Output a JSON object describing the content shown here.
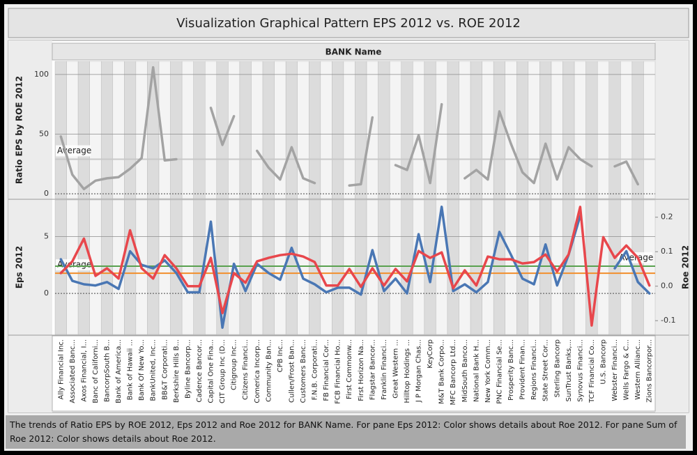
{
  "dashboard": {
    "title": "Visualization Graphical Pattern EPS 2012 vs. ROE 2012",
    "column_header": "BANK Name",
    "caption": "The trends of Ratio EPS by ROE 2012, Eps 2012 and Roe 2012 for BANK Name.  For pane Eps 2012:  Color shows details about Roe 2012.  For pane Sum of Roe 2012:  Color shows details about Roe 2012."
  },
  "chart_data": [
    {
      "type": "line",
      "ylim": [
        -4,
        111
      ],
      "yticks": [
        0,
        50,
        100
      ],
      "grid": true,
      "reference_lines": [
        {
          "label": "Average",
          "value": 29,
          "color": "#c8c8c8"
        }
      ],
      "series": [
        {
          "name": "Ratio EPS by ROE 2012",
          "color": "#a3a3a3",
          "values": [
            48,
            16,
            4,
            11,
            13,
            14,
            21,
            30,
            106,
            28,
            29,
            null,
            null,
            72,
            41,
            65,
            null,
            36,
            22,
            12,
            39,
            13,
            9,
            null,
            null,
            7,
            8,
            64,
            null,
            24,
            20,
            49,
            9,
            75,
            null,
            13,
            20,
            12,
            69,
            42,
            18,
            9,
            42,
            12,
            39,
            29,
            23,
            null,
            23,
            27,
            8,
            null
          ]
        }
      ]
    },
    {
      "type": "line",
      "ylim": [
        -3.6,
        8.2
      ],
      "yticks": [
        0,
        5
      ],
      "y2lim": [
        -0.14,
        0.25
      ],
      "y2ticks": [
        -0.1,
        {
          "value": 0,
          "label": "0.0"
        },
        0.1,
        0.2
      ],
      "grid": true,
      "categories": [
        "Ally Financial Inc.",
        "Associated Banc...",
        "Axos Financial, I...",
        "Banc of Californi...",
        "BancorpSouth B...",
        "Bank of America...",
        "Bank of Hawaii ...",
        "Bank Of New Yo...",
        "BankUnited, Inc...",
        "BB&T Corporati...",
        "Berkshire Hills B...",
        "Byline Bancorp...",
        "Cadence Bancor...",
        "Capital One Fina...",
        "CIT Group Inc (D...",
        "Citigroup Inc...",
        "Citizens Financi...",
        "Comerica Incorp...",
        "Community Ban...",
        "CPB Inc...",
        "Cullen/Frost Ban...",
        "Customers Banc...",
        "F.N.B. Corporati...",
        "FB Financial Cor...",
        "FCB Financial Ho...",
        "First Commonw...",
        "First Horizon Na...",
        "Flagstar Bancor...",
        "Franklin Financi...",
        "Great Western ...",
        "Hilltop Holdings ...",
        "J P Morgan Chas...",
        "KeyCorp",
        "M&T Bank Corpo...",
        "MFC Bancorp Ltd...",
        "MidSouth Banco...",
        "National Bank H...",
        "New York Comm...",
        "PNC Financial Se...",
        "Prosperity Banc...",
        "Provident Finan...",
        "Regions Financi...",
        "State Street Cor...",
        "Sterling Bancorp",
        "SunTrust Banks,...",
        "Synovus Financi...",
        "TCF Financial Co...",
        "U.S. Bancorp",
        "Webster Financi...",
        "Wells Fargo & C...",
        "Western Allianc...",
        "Zions Bancorpor..."
      ],
      "reference_lines": [
        {
          "label": "Average",
          "value": 1.77,
          "color": "#f28e2b"
        },
        {
          "label": "Average",
          "value": 0.058,
          "axis": "y2",
          "color": "#59a14f"
        }
      ],
      "series": [
        {
          "name": "Eps 2012",
          "color": "#4a77b4",
          "values": [
            3.0,
            1.1,
            0.8,
            0.7,
            1.0,
            0.4,
            3.7,
            2.5,
            2.2,
            2.9,
            1.8,
            0.1,
            0.1,
            6.3,
            -3.0,
            2.6,
            0.2,
            2.6,
            1.8,
            1.2,
            4.0,
            1.3,
            0.8,
            0.1,
            0.5,
            0.5,
            -0.1,
            3.8,
            0.2,
            1.3,
            0.0,
            5.2,
            1.0,
            7.6,
            0.2,
            0.8,
            0.1,
            1.0,
            5.4,
            3.4,
            1.3,
            0.8,
            4.3,
            0.7,
            3.4,
            6.8,
            null,
            null,
            2.2,
            3.7,
            1.0,
            0.0
          ]
        },
        {
          "name": "Roe 2012",
          "color": "#e8474c",
          "axis": "y2",
          "values": [
            0.038,
            0.072,
            0.138,
            0.03,
            0.052,
            0.022,
            0.162,
            0.052,
            0.022,
            0.09,
            0.052,
            0.0,
            0.0,
            0.082,
            -0.078,
            0.038,
            0.01,
            0.072,
            0.082,
            0.09,
            0.094,
            0.086,
            0.07,
            0.002,
            0.002,
            0.05,
            -0.002,
            0.052,
            0.002,
            0.05,
            0.014,
            0.102,
            0.082,
            0.098,
            -0.006,
            0.046,
            0.002,
            0.086,
            0.078,
            0.078,
            0.066,
            0.07,
            0.092,
            0.042,
            0.092,
            0.23,
            -0.114,
            0.142,
            0.082,
            0.118,
            0.082,
            0.002
          ]
        }
      ]
    }
  ]
}
